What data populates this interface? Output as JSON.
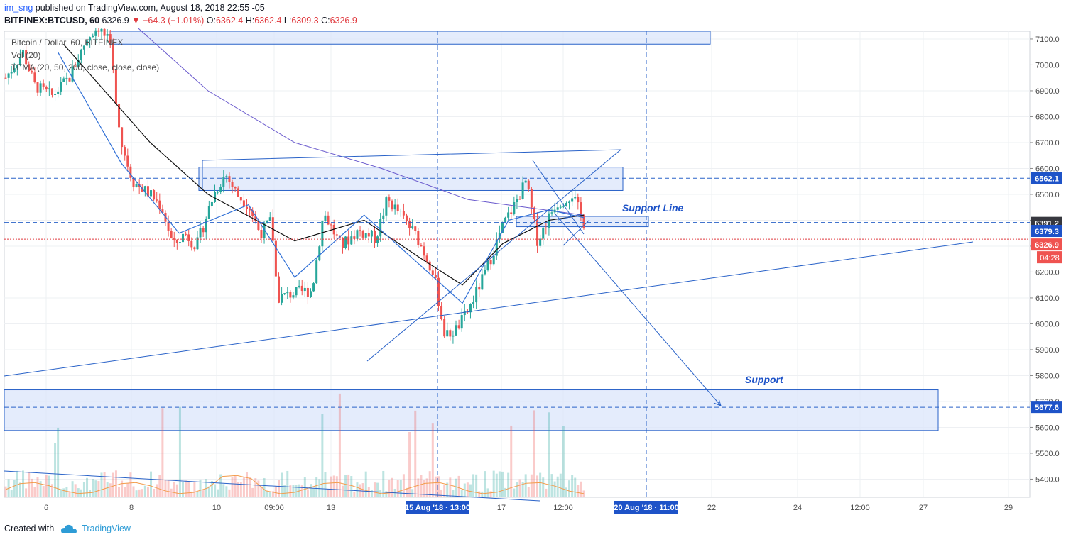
{
  "header": {
    "author": "im_sng",
    "published_text": " published on TradingView.com, August 18, 2018 22:55 -05",
    "symbol": "BITFINEX:BTCUSD, 60",
    "last": "6326.9",
    "change": "−64.3 (−1.01%)",
    "ohlc": [
      {
        "k": "O:",
        "v": "6362.4"
      },
      {
        "k": "H:",
        "v": "6362.4"
      },
      {
        "k": "L:",
        "v": "6309.3"
      },
      {
        "k": "C:",
        "v": "6326.9"
      }
    ]
  },
  "legend": {
    "title": "Bitcoin / Dollar, 60, BITFINEX",
    "volume": "Vol (20)",
    "tema": "TEMA (20, 50, 200, close, close, close)"
  },
  "footer": {
    "created_with": "Created with",
    "brand": "TradingView"
  },
  "colors": {
    "up": "#26a69a",
    "down": "#ef5350",
    "drawing": "#2962c8",
    "price_tag": "#1e53c8",
    "zone_fill": "#dbe6fb"
  },
  "chart_data": {
    "type": "candlestick",
    "title": "Bitcoin / Dollar, 60, BITFINEX",
    "ylim": [
      5330,
      7130
    ],
    "x_ticks": [
      "6",
      "8",
      "10",
      "09:00",
      "13",
      "17",
      "12:00",
      "22",
      "24",
      "12:00",
      "27",
      "29"
    ],
    "y_ticks": [
      "7100.0",
      "7000.0",
      "6900.0",
      "6800.0",
      "6700.0",
      "6600.0",
      "6500.0",
      "6400.0",
      "6300.0",
      "6200.0",
      "6100.0",
      "6000.0",
      "5900.0",
      "5800.0",
      "5700.0",
      "5600.0",
      "5500.0",
      "5400.0"
    ],
    "price_tags": [
      {
        "value": 6562.1,
        "label": "6562.1",
        "color": "#1e53c8"
      },
      {
        "value": 6391.2,
        "label": "6391.2",
        "color": "#37383f"
      },
      {
        "value": 6379.3,
        "label": "6379.3",
        "color": "#1e53c8"
      },
      {
        "value": 6326.9,
        "label": "6326.9",
        "color": "#ef5350"
      },
      {
        "value": 5677.6,
        "label": "5677.6",
        "color": "#1e53c8"
      }
    ],
    "countdown": "04:28",
    "time_markers": [
      "15 Aug '18 · 13:00",
      "20 Aug '18 · 11:00"
    ],
    "annotations": [
      "Support Line",
      "Support"
    ],
    "price_path": [
      [
        0,
        6950
      ],
      [
        0.03,
        7050
      ],
      [
        0.05,
        6920
      ],
      [
        0.08,
        6880
      ],
      [
        0.11,
        6950
      ],
      [
        0.14,
        7100
      ],
      [
        0.16,
        7150
      ],
      [
        0.18,
        7080
      ],
      [
        0.2,
        6700
      ],
      [
        0.22,
        6550
      ],
      [
        0.25,
        6500
      ],
      [
        0.27,
        6450
      ],
      [
        0.29,
        6300
      ],
      [
        0.31,
        6350
      ],
      [
        0.33,
        6300
      ],
      [
        0.36,
        6500
      ],
      [
        0.38,
        6580
      ],
      [
        0.4,
        6500
      ],
      [
        0.42,
        6460
      ],
      [
        0.44,
        6350
      ],
      [
        0.46,
        6400
      ],
      [
        0.47,
        6100
      ],
      [
        0.5,
        6120
      ],
      [
        0.53,
        6130
      ],
      [
        0.55,
        6430
      ],
      [
        0.58,
        6300
      ],
      [
        0.61,
        6360
      ],
      [
        0.64,
        6330
      ],
      [
        0.66,
        6480
      ],
      [
        0.68,
        6430
      ],
      [
        0.71,
        6340
      ],
      [
        0.74,
        6200
      ],
      [
        0.76,
        5950
      ],
      [
        0.78,
        5980
      ],
      [
        0.8,
        6050
      ],
      [
        0.83,
        6200
      ],
      [
        0.86,
        6380
      ],
      [
        0.88,
        6460
      ],
      [
        0.9,
        6550
      ],
      [
        0.92,
        6320
      ],
      [
        0.95,
        6460
      ],
      [
        0.98,
        6500
      ],
      [
        1.0,
        6390
      ]
    ],
    "ema_black": [
      [
        0.1,
        7080
      ],
      [
        0.25,
        6700
      ],
      [
        0.35,
        6500
      ],
      [
        0.5,
        6320
      ],
      [
        0.62,
        6400
      ],
      [
        0.72,
        6250
      ],
      [
        0.79,
        6150
      ],
      [
        0.86,
        6310
      ],
      [
        0.94,
        6400
      ],
      [
        1.0,
        6420
      ]
    ],
    "ema_blue": [
      [
        0.09,
        7050
      ],
      [
        0.2,
        6620
      ],
      [
        0.3,
        6350
      ],
      [
        0.42,
        6460
      ],
      [
        0.5,
        6180
      ],
      [
        0.62,
        6420
      ],
      [
        0.72,
        6220
      ],
      [
        0.79,
        6080
      ],
      [
        0.87,
        6400
      ],
      [
        0.94,
        6440
      ],
      [
        1.0,
        6410
      ]
    ],
    "ema_purple": [
      [
        0.2,
        7200
      ],
      [
        0.35,
        6900
      ],
      [
        0.5,
        6700
      ],
      [
        0.65,
        6600
      ],
      [
        0.8,
        6480
      ],
      [
        0.9,
        6450
      ],
      [
        1.0,
        6420
      ]
    ]
  }
}
